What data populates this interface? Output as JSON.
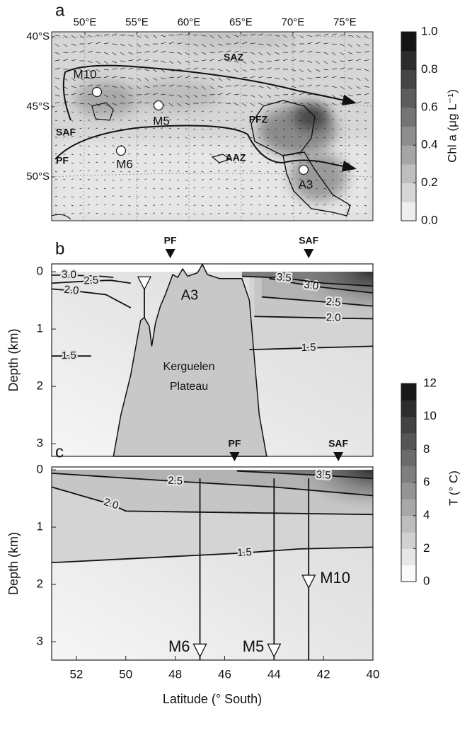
{
  "chart_data": [
    {
      "type": "map",
      "panel": "a",
      "xlim": [
        46.8,
        77.7
      ],
      "ylim": [
        -53.13,
        -39.65
      ],
      "xticks": [
        {
          "value": 50,
          "label": "50°E"
        },
        {
          "value": 55,
          "label": "55°E"
        },
        {
          "value": 60,
          "label": "60°E"
        },
        {
          "value": 65,
          "label": "65°E"
        },
        {
          "value": 70,
          "label": "70°E"
        },
        {
          "value": 75,
          "label": "75°E"
        }
      ],
      "yticks": [
        {
          "value": -40,
          "label": "40°S"
        },
        {
          "value": -45,
          "label": "45°S"
        },
        {
          "value": -50,
          "label": "50°S"
        }
      ],
      "regions": [
        "SAZ",
        "PFZ",
        "AAZ"
      ],
      "fronts": [
        "SAF",
        "PF"
      ],
      "sites": [
        "M10",
        "M5",
        "M6",
        "A3"
      ],
      "colorbar": {
        "label": "Chl a (μg L⁻¹)",
        "ylim": [
          0,
          1
        ],
        "yticks": [
          {
            "value": 0,
            "label": "0.0"
          },
          0.2,
          0.4,
          0.6,
          0.8,
          {
            "value": 1,
            "label": "1.0"
          }
        ]
      }
    },
    {
      "type": "section",
      "panel": "b",
      "xlim": [
        53,
        40
      ],
      "ylim": [
        3.22,
        -0.136
      ],
      "yticks": [
        0,
        1,
        2,
        3
      ],
      "ylabel": "Depth (km)",
      "fronts": [
        {
          "name": "PF",
          "lat": 48.2
        },
        {
          "name": "SAF",
          "lat": 42.6
        }
      ],
      "contours": [
        {
          "level": {
            "value": 3,
            "label": "3.0"
          },
          "points": [
            [
              53,
              0.06
            ],
            [
              52.3,
              0.06
            ],
            [
              51,
              0.08
            ],
            [
              50.5,
              0.1
            ]
          ]
        },
        {
          "level": {
            "value": 2.5,
            "label": "2.5"
          },
          "points": [
            [
              53,
              0.2
            ],
            [
              51.4,
              0.16
            ],
            [
              50.6,
              0.15
            ],
            [
              49.8,
              0.2
            ]
          ]
        },
        {
          "level": {
            "value": 2,
            "label": "2.0"
          },
          "points": [
            [
              53,
              0.3
            ],
            [
              52.2,
              0.33
            ],
            [
              50.8,
              0.4
            ],
            [
              49.8,
              0.63
            ]
          ]
        },
        {
          "level": {
            "value": 1.5,
            "label": "1.5"
          },
          "points": [
            [
              53,
              1.47
            ],
            [
              52.3,
              1.47
            ],
            [
              51.4,
              1.47
            ]
          ]
        },
        {
          "level": {
            "value": 1.5,
            "label": "1.5"
          },
          "points": [
            [
              45,
              1.36
            ],
            [
              42.6,
              1.33
            ],
            [
              40,
              1.3
            ]
          ]
        },
        {
          "level": {
            "value": 2,
            "label": "2.0"
          },
          "points": [
            [
              44.8,
              0.78
            ],
            [
              41.6,
              0.81
            ],
            [
              40,
              0.82
            ]
          ]
        },
        {
          "level": {
            "value": 2.5,
            "label": "2.5"
          },
          "points": [
            [
              44.5,
              0.44
            ],
            [
              41.6,
              0.54
            ],
            [
              40,
              0.6
            ]
          ]
        },
        {
          "level": {
            "value": 3,
            "label": "3.0"
          },
          "points": [
            [
              44.2,
              0.12
            ],
            [
              42.5,
              0.25
            ],
            [
              40,
              0.37
            ]
          ]
        },
        {
          "level": {
            "value": 3.5,
            "label": "3.5"
          },
          "points": [
            [
              45.3,
              0.08
            ],
            [
              43.6,
              0.11
            ],
            [
              42,
              0.2
            ],
            [
              40,
              0.25
            ]
          ]
        }
      ],
      "plateau": {
        "label": [
          "Kerguelen",
          "Plateau"
        ],
        "site": "A3",
        "outline": [
          [
            50.5,
            3.22
          ],
          [
            50.2,
            2.5
          ],
          [
            49.8,
            1.8
          ],
          [
            49.55,
            1.2
          ],
          [
            49.4,
            0.85
          ],
          [
            49.25,
            0.8
          ],
          [
            49.05,
            0.95
          ],
          [
            48.95,
            1.3
          ],
          [
            48.8,
            0.9
          ],
          [
            48.6,
            0.6
          ],
          [
            48.4,
            0.4
          ],
          [
            48.1,
            0.05
          ],
          [
            47.9,
            0.1
          ],
          [
            47.7,
            -0.05
          ],
          [
            47.5,
            0.08
          ],
          [
            47.1,
            0.02
          ],
          [
            46.9,
            -0.13
          ],
          [
            46.7,
            0.05
          ],
          [
            46.2,
            0.12
          ],
          [
            45.3,
            0.12
          ],
          [
            45.0,
            0.5
          ],
          [
            44.8,
            1.5
          ],
          [
            44.6,
            2.5
          ],
          [
            44.3,
            3.22
          ]
        ]
      },
      "moorings": [
        {
          "lat": 49.25,
          "top": 0.2,
          "bottom": 0.8
        }
      ]
    },
    {
      "type": "section",
      "panel": "c",
      "xlim": [
        53,
        40
      ],
      "ylim": [
        3.32,
        -0.05
      ],
      "yticks": [
        0,
        1,
        2,
        3
      ],
      "ylabel": "Depth (km)",
      "xticks": [
        52,
        50,
        48,
        46,
        44,
        42,
        40
      ],
      "xlabel": "Latitude (° South)",
      "fronts": [
        {
          "name": "PF",
          "lat": 45.6
        },
        {
          "name": "SAF",
          "lat": 41.4
        }
      ],
      "contours": [
        {
          "level": {
            "value": 1.5,
            "label": "1.5"
          },
          "points": [
            [
              53,
              1.62
            ],
            [
              45.2,
              1.45
            ],
            [
              43,
              1.38
            ],
            [
              40,
              1.35
            ]
          ]
        },
        {
          "level": {
            "value": 2,
            "label": "2.0"
          },
          "points": [
            [
              53,
              0.3
            ],
            [
              50.6,
              0.6
            ],
            [
              50,
              0.72
            ],
            [
              45,
              0.75
            ],
            [
              40,
              0.78
            ]
          ]
        },
        {
          "level": {
            "value": 2.5,
            "label": "2.5"
          },
          "points": [
            [
              53,
              0.06
            ],
            [
              48,
              0.2
            ],
            [
              44,
              0.3
            ],
            [
              40,
              0.45
            ]
          ]
        },
        {
          "level": {
            "value": 3.5,
            "label": "3.5"
          },
          "points": [
            [
              45.5,
              0.02
            ],
            [
              42,
              0.1
            ],
            [
              40,
              0.15
            ]
          ]
        }
      ],
      "moorings": [
        {
          "name": "M6",
          "lat": 47,
          "depth": 3.15,
          "top": 0.15,
          "bottom": 3.32
        },
        {
          "name": "M5",
          "lat": 44,
          "depth": 3.15,
          "top": 0.15,
          "bottom": 3.32
        },
        {
          "name": "M10",
          "lat": 42.6,
          "depth": 1.95,
          "top": 0.15,
          "bottom": 3.32
        }
      ]
    },
    {
      "type": "colorbar",
      "label": "T (° C)",
      "ylim": [
        0,
        12
      ],
      "yticks": [
        0,
        2,
        4,
        6,
        8,
        10,
        12
      ]
    }
  ]
}
